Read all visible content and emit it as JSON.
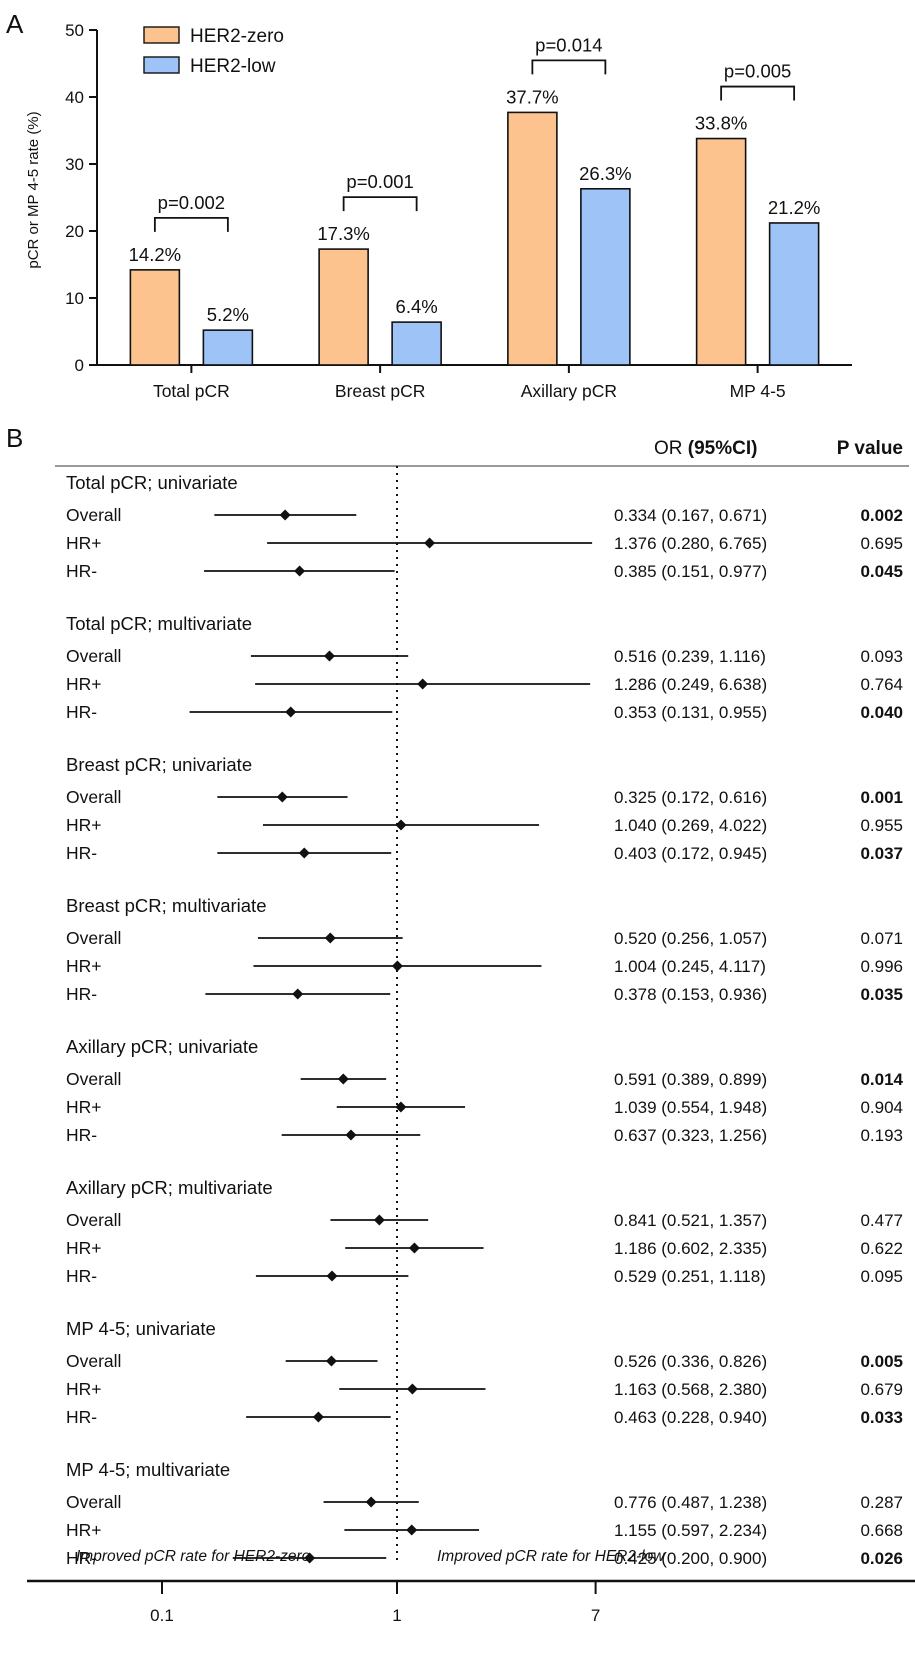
{
  "panel_a": {
    "panel_label": "A",
    "chart_data": {
      "type": "bar",
      "ylabel": "pCR or MP 4-5 rate (%)",
      "xlabel": "",
      "title": "",
      "ylim": [
        0,
        50
      ],
      "yticks": [
        0,
        10,
        20,
        30,
        40,
        50
      ],
      "categories": [
        "Total pCR",
        "Breast pCR",
        "Axillary pCR",
        "MP 4-5"
      ],
      "series": [
        {
          "name": "HER2-zero",
          "color": "#FDC38E",
          "values": [
            14.2,
            17.3,
            37.7,
            33.8
          ],
          "labels": [
            "14.2%",
            "17.3%",
            "37.7%",
            "33.8%"
          ]
        },
        {
          "name": "HER2-low",
          "color": "#9DC3F7",
          "values": [
            5.2,
            6.4,
            26.3,
            21.2
          ],
          "labels": [
            "5.2%",
            "6.4%",
            "26.3%",
            "21.2%"
          ]
        }
      ],
      "pvalues": [
        "p=0.002",
        "p=0.001",
        "p=0.014",
        "p=0.005"
      ],
      "legend_position": "top-left",
      "grid": false
    }
  },
  "panel_b": {
    "panel_label": "B",
    "chart_data": {
      "type": "forest",
      "col_or_label": "OR",
      "col_ci_label": "(95%CI)",
      "col_p_label": "P value",
      "xscale": "log",
      "xlim": [
        0.04,
        20
      ],
      "xticks": [
        0.1,
        1,
        7
      ],
      "xtick_labels": [
        "0.1",
        "1",
        "7"
      ],
      "reference": 1,
      "left_annotation": "Improved pCR rate for HER2-zero",
      "right_annotation": "Improved pCR rate for HER2-low",
      "groups": [
        {
          "title": "Total pCR; univariate",
          "rows": [
            {
              "label": "Overall",
              "or": 0.334,
              "lo": 0.167,
              "hi": 0.671,
              "text": "0.334 (0.167, 0.671)",
              "p": "0.002",
              "sig": true
            },
            {
              "label": "HR+",
              "or": 1.376,
              "lo": 0.28,
              "hi": 6.765,
              "text": "1.376 (0.280, 6.765)",
              "p": "0.695",
              "sig": false
            },
            {
              "label": "HR-",
              "or": 0.385,
              "lo": 0.151,
              "hi": 0.977,
              "text": "0.385 (0.151, 0.977)",
              "p": "0.045",
              "sig": true
            }
          ]
        },
        {
          "title": "Total pCR; multivariate",
          "rows": [
            {
              "label": "Overall",
              "or": 0.516,
              "lo": 0.239,
              "hi": 1.116,
              "text": "0.516 (0.239, 1.116)",
              "p": "0.093",
              "sig": false
            },
            {
              "label": "HR+",
              "or": 1.286,
              "lo": 0.249,
              "hi": 6.638,
              "text": "1.286 (0.249, 6.638)",
              "p": "0.764",
              "sig": false
            },
            {
              "label": "HR-",
              "or": 0.353,
              "lo": 0.131,
              "hi": 0.955,
              "text": "0.353 (0.131, 0.955)",
              "p": "0.040",
              "sig": true
            }
          ]
        },
        {
          "title": "Breast pCR; univariate",
          "rows": [
            {
              "label": "Overall",
              "or": 0.325,
              "lo": 0.172,
              "hi": 0.616,
              "text": "0.325 (0.172, 0.616)",
              "p": "0.001",
              "sig": true
            },
            {
              "label": "HR+",
              "or": 1.04,
              "lo": 0.269,
              "hi": 4.022,
              "text": "1.040 (0.269, 4.022)",
              "p": "0.955",
              "sig": false
            },
            {
              "label": "HR-",
              "or": 0.403,
              "lo": 0.172,
              "hi": 0.945,
              "text": "0.403 (0.172, 0.945)",
              "p": "0.037",
              "sig": true
            }
          ]
        },
        {
          "title": "Breast pCR; multivariate",
          "rows": [
            {
              "label": "Overall",
              "or": 0.52,
              "lo": 0.256,
              "hi": 1.057,
              "text": "0.520 (0.256, 1.057)",
              "p": "0.071",
              "sig": false
            },
            {
              "label": "HR+",
              "or": 1.004,
              "lo": 0.245,
              "hi": 4.117,
              "text": "1.004 (0.245, 4.117)",
              "p": "0.996",
              "sig": false
            },
            {
              "label": "HR-",
              "or": 0.378,
              "lo": 0.153,
              "hi": 0.936,
              "text": "0.378 (0.153, 0.936)",
              "p": "0.035",
              "sig": true
            }
          ]
        },
        {
          "title": "Axillary pCR; univariate",
          "rows": [
            {
              "label": "Overall",
              "or": 0.591,
              "lo": 0.389,
              "hi": 0.899,
              "text": "0.591 (0.389, 0.899)",
              "p": "0.014",
              "sig": true
            },
            {
              "label": "HR+",
              "or": 1.039,
              "lo": 0.554,
              "hi": 1.948,
              "text": "1.039 (0.554, 1.948)",
              "p": "0.904",
              "sig": false
            },
            {
              "label": "HR-",
              "or": 0.637,
              "lo": 0.323,
              "hi": 1.256,
              "text": "0.637 (0.323, 1.256)",
              "p": "0.193",
              "sig": false
            }
          ]
        },
        {
          "title": "Axillary pCR; multivariate",
          "rows": [
            {
              "label": "Overall",
              "or": 0.841,
              "lo": 0.521,
              "hi": 1.357,
              "text": "0.841 (0.521, 1.357)",
              "p": "0.477",
              "sig": false
            },
            {
              "label": "HR+",
              "or": 1.186,
              "lo": 0.602,
              "hi": 2.335,
              "text": "1.186 (0.602, 2.335)",
              "p": "0.622",
              "sig": false
            },
            {
              "label": "HR-",
              "or": 0.529,
              "lo": 0.251,
              "hi": 1.118,
              "text": "0.529 (0.251, 1.118)",
              "p": "0.095",
              "sig": false
            }
          ]
        },
        {
          "title": "MP 4-5; univariate",
          "rows": [
            {
              "label": "Overall",
              "or": 0.526,
              "lo": 0.336,
              "hi": 0.826,
              "text": "0.526 (0.336, 0.826)",
              "p": "0.005",
              "sig": true
            },
            {
              "label": "HR+",
              "or": 1.163,
              "lo": 0.568,
              "hi": 2.38,
              "text": "1.163 (0.568, 2.380)",
              "p": "0.679",
              "sig": false
            },
            {
              "label": "HR-",
              "or": 0.463,
              "lo": 0.228,
              "hi": 0.94,
              "text": "0.463 (0.228, 0.940)",
              "p": "0.033",
              "sig": true
            }
          ]
        },
        {
          "title": "MP 4-5; multivariate",
          "rows": [
            {
              "label": "Overall",
              "or": 0.776,
              "lo": 0.487,
              "hi": 1.238,
              "text": "0.776 (0.487, 1.238)",
              "p": "0.287",
              "sig": false
            },
            {
              "label": "HR+",
              "or": 1.155,
              "lo": 0.597,
              "hi": 2.234,
              "text": "1.155 (0.597, 2.234)",
              "p": "0.668",
              "sig": false
            },
            {
              "label": "HR-",
              "or": 0.425,
              "lo": 0.2,
              "hi": 0.9,
              "text": "0.425 (0.200, 0.900)",
              "p": "0.026",
              "sig": true
            }
          ]
        }
      ]
    }
  }
}
